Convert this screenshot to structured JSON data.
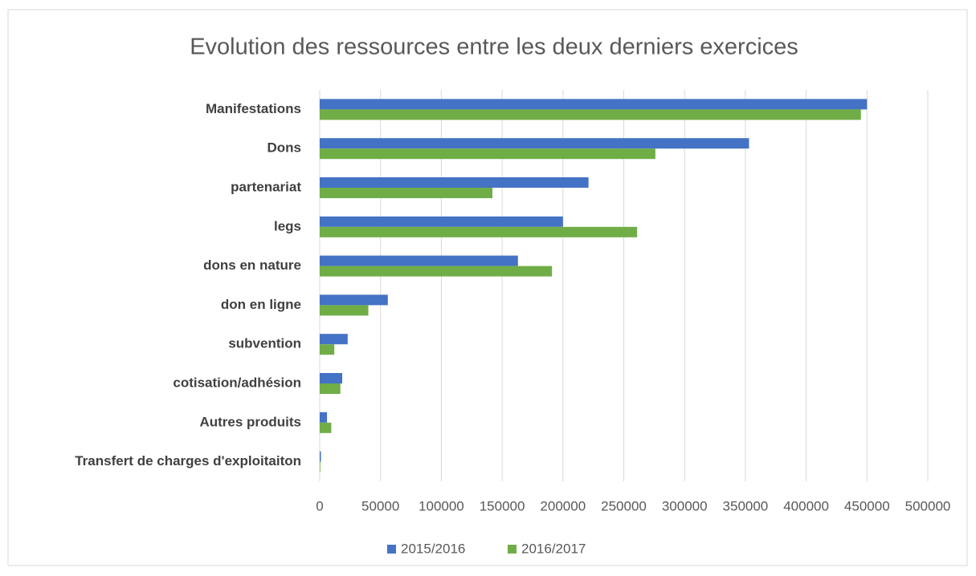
{
  "chart_data": {
    "type": "barh",
    "title": "Evolution des ressources entre les deux derniers exercices",
    "categories": [
      "Manifestations",
      "Dons",
      "partenariat",
      "legs",
      "dons en nature",
      "don en ligne",
      "subvention",
      "cotisation/adhésion",
      "Autres produits",
      "Transfert de charges d'exploitaiton"
    ],
    "series": [
      {
        "name": "2015/2016",
        "color": "#4472c4",
        "values": [
          450000,
          353000,
          221000,
          200000,
          163000,
          56000,
          23000,
          18500,
          6000,
          1000
        ]
      },
      {
        "name": "2016/2017",
        "color": "#70ad47",
        "values": [
          445000,
          276000,
          142000,
          261000,
          191000,
          40000,
          12000,
          17000,
          9500,
          500
        ]
      }
    ],
    "xlim": [
      0,
      500000
    ],
    "xticks": [
      0,
      50000,
      100000,
      150000,
      200000,
      250000,
      300000,
      350000,
      400000,
      450000,
      500000
    ],
    "grid": true,
    "legend": "bottom"
  }
}
